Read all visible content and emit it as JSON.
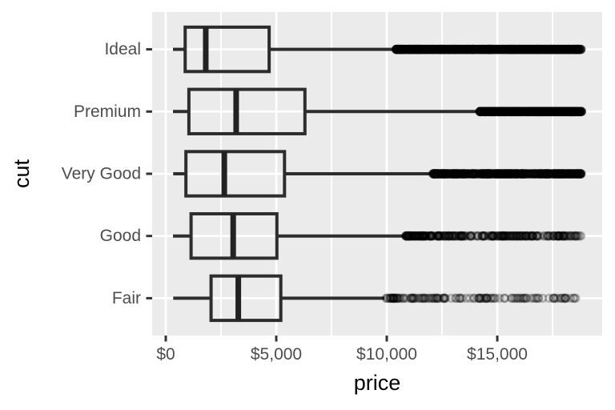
{
  "chart_data": {
    "type": "boxplot",
    "orientation": "horizontal",
    "title": "",
    "xlabel": "price",
    "ylabel": "cut",
    "legend": "none",
    "grid": true,
    "x_domain": [
      -620,
      19750
    ],
    "x_ticks": [
      {
        "value": 0,
        "label": "$0"
      },
      {
        "value": 5000,
        "label": "$5,000"
      },
      {
        "value": 10000,
        "label": "$10,000"
      },
      {
        "value": 15000,
        "label": "$15,000"
      }
    ],
    "x_minor_ticks": [
      2500,
      7500,
      12500,
      17500
    ],
    "categories": [
      "Ideal",
      "Premium",
      "Very Good",
      "Good",
      "Fair"
    ],
    "series": [
      {
        "name": "Ideal",
        "min": 326,
        "q1": 878,
        "median": 1810,
        "q3": 4678,
        "whisker_high": 10372,
        "outliers": {
          "from": 10400,
          "to": 18806,
          "count": 1000,
          "bias": 1.0,
          "density": "very-high"
        }
      },
      {
        "name": "Premium",
        "min": 326,
        "q1": 1046,
        "median": 3185,
        "q3": 6296,
        "whisker_high": 14160,
        "outliers": {
          "from": 14190,
          "to": 18823,
          "count": 650,
          "bias": 1.0,
          "density": "very-high"
        }
      },
      {
        "name": "Very Good",
        "min": 336,
        "q1": 912,
        "median": 2648,
        "q3": 5373,
        "whisker_high": 12052,
        "outliers": {
          "from": 12080,
          "to": 18818,
          "count": 550,
          "bias": 1.05,
          "density": "high"
        }
      },
      {
        "name": "Good",
        "min": 327,
        "q1": 1145,
        "median": 3050,
        "q3": 5028,
        "whisker_high": 10836,
        "outliers": {
          "from": 10870,
          "to": 18788,
          "count": 280,
          "bias": 1.35,
          "density": "medium"
        }
      },
      {
        "name": "Fair",
        "min": 337,
        "q1": 2050,
        "median": 3282,
        "q3": 5206,
        "whisker_high": 9899,
        "outliers": {
          "from": 9930,
          "to": 18574,
          "count": 130,
          "bias": 1.3,
          "density": "low"
        }
      }
    ],
    "style": {
      "background": "#FFFFFF",
      "panel_bg": "#EBEBEB",
      "grid_major": "#FFFFFF",
      "grid_minor": "#FFFFFF",
      "box_stroke": "#2D2D2D",
      "median_stroke": "#222222",
      "tick_mark": "#333333",
      "axis_text": "#4D4D4D",
      "axis_title": "#000000",
      "outlier_stroke": "rgba(0,0,0,0.22)",
      "outlier_fill": "rgba(0,0,0,0.06)"
    }
  }
}
